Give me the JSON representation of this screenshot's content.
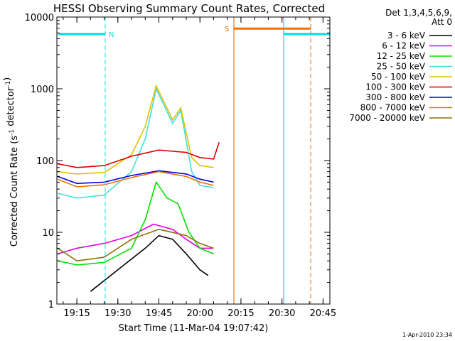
{
  "chart_data": {
    "type": "line",
    "title": "HESSI Observing Summary Count Rates, Corrected",
    "xlabel": "Start Time (11-Mar-04 19:07:42)",
    "ylabel": "Corrected Count Rate (s",
    "ylabel_sup": "-1",
    "ylabel_mid": " detector",
    "ylabel_sup2": "-1",
    "ylabel_end": ")",
    "y_scale": "log",
    "ylim": [
      1,
      10000
    ],
    "xlim": [
      "19:07:42",
      "20:47:30"
    ],
    "x_ticks": [
      "19:15",
      "19:30",
      "19:45",
      "20:00",
      "20:15",
      "20:30",
      "20:45"
    ],
    "y_ticks": [
      "1",
      "10",
      "100",
      "1000",
      "10000"
    ],
    "legend_header": [
      "Det 1,3,4,5,6,9,",
      "Att 0"
    ],
    "legend_position": "right",
    "footer": "1-Apr-2010 23:34",
    "annotations": [
      {
        "label": "N",
        "color": "#00e0e0"
      },
      {
        "label": "S",
        "color": "#f07000"
      }
    ],
    "series": [
      {
        "name": "3 - 6 keV",
        "color": "#000000",
        "points": [
          [
            "19:20",
            1.5
          ],
          [
            "19:30",
            3
          ],
          [
            "19:40",
            6
          ],
          [
            "19:45",
            9
          ],
          [
            "19:50",
            8
          ],
          [
            "19:55",
            5
          ],
          [
            "20:00",
            3
          ],
          [
            "20:03",
            2.5
          ]
        ]
      },
      {
        "name": "6 - 12 keV",
        "color": "#e000e0",
        "points": [
          [
            "19:08",
            5
          ],
          [
            "19:15",
            6
          ],
          [
            "19:25",
            7
          ],
          [
            "19:35",
            9
          ],
          [
            "19:43",
            13
          ],
          [
            "19:50",
            11
          ],
          [
            "19:55",
            8
          ],
          [
            "20:00",
            6
          ],
          [
            "20:05",
            6
          ]
        ]
      },
      {
        "name": "12 - 25 keV",
        "color": "#00e000",
        "points": [
          [
            "19:08",
            4
          ],
          [
            "19:15",
            3.5
          ],
          [
            "19:25",
            3.8
          ],
          [
            "19:35",
            6
          ],
          [
            "19:40",
            15
          ],
          [
            "19:44",
            50
          ],
          [
            "19:48",
            30
          ],
          [
            "19:52",
            25
          ],
          [
            "19:56",
            10
          ],
          [
            "20:00",
            6
          ],
          [
            "20:05",
            5
          ]
        ]
      },
      {
        "name": "25 - 50 keV",
        "color": "#40e0e0",
        "points": [
          [
            "19:08",
            35
          ],
          [
            "19:15",
            30
          ],
          [
            "19:25",
            33
          ],
          [
            "19:35",
            70
          ],
          [
            "19:40",
            200
          ],
          [
            "19:44",
            1000
          ],
          [
            "19:50",
            330
          ],
          [
            "19:53",
            500
          ],
          [
            "19:57",
            70
          ],
          [
            "20:00",
            45
          ],
          [
            "20:05",
            42
          ]
        ]
      },
      {
        "name": "50 - 100 keV",
        "color": "#e0c000",
        "points": [
          [
            "19:08",
            70
          ],
          [
            "19:15",
            65
          ],
          [
            "19:25",
            68
          ],
          [
            "19:35",
            120
          ],
          [
            "19:40",
            300
          ],
          [
            "19:44",
            1100
          ],
          [
            "19:50",
            370
          ],
          [
            "19:53",
            540
          ],
          [
            "19:57",
            110
          ],
          [
            "20:00",
            85
          ],
          [
            "20:05",
            80
          ]
        ]
      },
      {
        "name": "100 - 300 keV",
        "color": "#e00000",
        "points": [
          [
            "19:08",
            90
          ],
          [
            "19:15",
            80
          ],
          [
            "19:25",
            85
          ],
          [
            "19:35",
            115
          ],
          [
            "19:45",
            140
          ],
          [
            "19:55",
            130
          ],
          [
            "20:00",
            110
          ],
          [
            "20:05",
            105
          ],
          [
            "20:07",
            180
          ]
        ]
      },
      {
        "name": "300 - 800 keV",
        "color": "#0000e0",
        "points": [
          [
            "19:08",
            60
          ],
          [
            "19:15",
            48
          ],
          [
            "19:25",
            50
          ],
          [
            "19:35",
            62
          ],
          [
            "19:45",
            72
          ],
          [
            "19:55",
            65
          ],
          [
            "20:00",
            55
          ],
          [
            "20:05",
            50
          ]
        ]
      },
      {
        "name": "800 - 7000 keV",
        "color": "#f07000",
        "points": [
          [
            "19:08",
            55
          ],
          [
            "19:15",
            43
          ],
          [
            "19:25",
            46
          ],
          [
            "19:35",
            58
          ],
          [
            "19:45",
            70
          ],
          [
            "19:55",
            60
          ],
          [
            "20:00",
            50
          ],
          [
            "20:05",
            45
          ]
        ]
      },
      {
        "name": "7000 - 20000 keV",
        "color": "#8a7000",
        "points": [
          [
            "19:08",
            6
          ],
          [
            "19:15",
            4
          ],
          [
            "19:25",
            4.5
          ],
          [
            "19:35",
            8
          ],
          [
            "19:45",
            11
          ],
          [
            "19:55",
            9
          ],
          [
            "20:00",
            7
          ],
          [
            "20:05",
            6
          ]
        ]
      }
    ]
  }
}
